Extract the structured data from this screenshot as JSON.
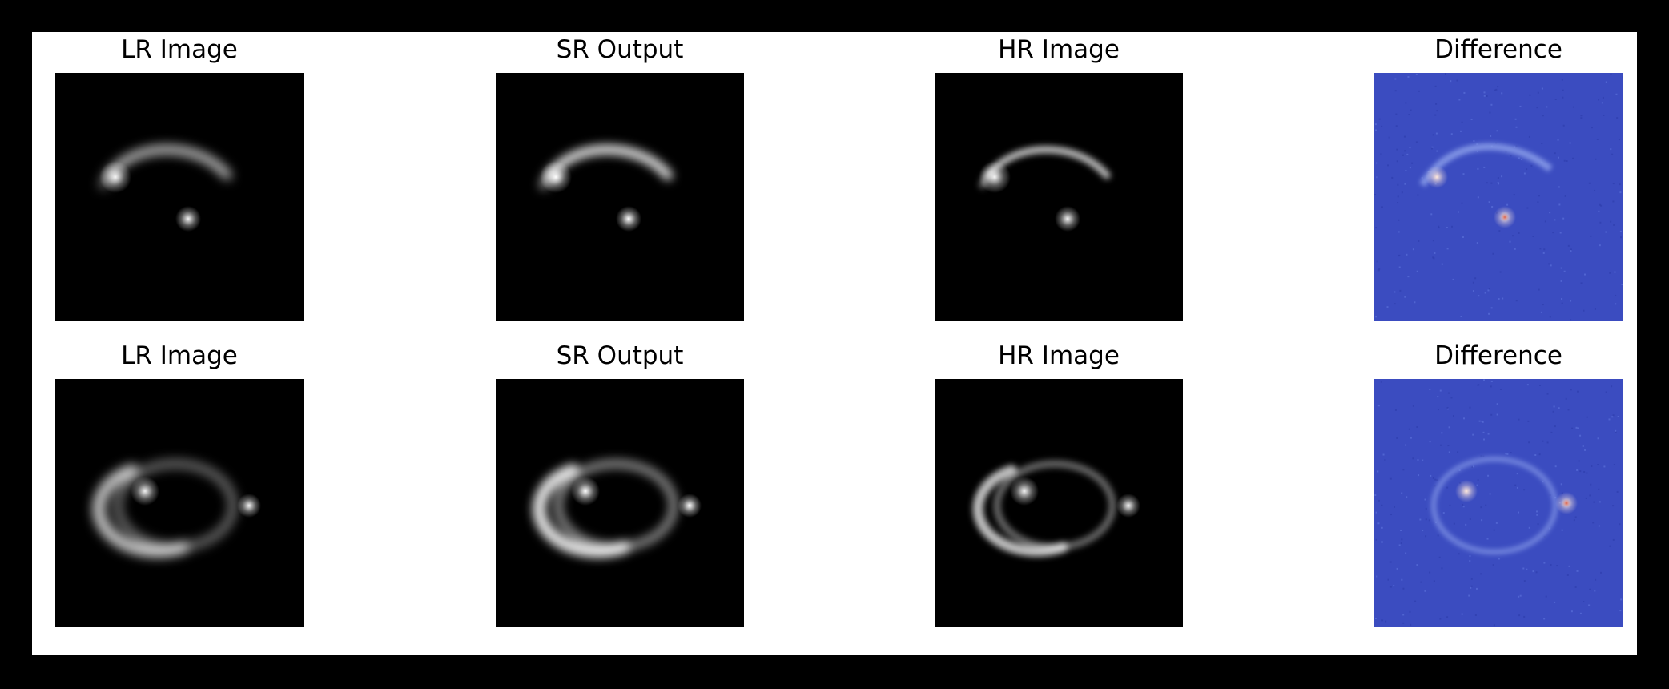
{
  "figure": {
    "rows": [
      {
        "panels": [
          {
            "title": "LR Image",
            "kind": "lr",
            "image": "lensed galaxy ring (low resolution)"
          },
          {
            "title": "SR Output",
            "kind": "sr",
            "image": "lensed galaxy ring (super-resolved)"
          },
          {
            "title": "HR Image",
            "kind": "hr",
            "image": "lensed galaxy ring (high resolution)"
          },
          {
            "title": "Difference",
            "kind": "diff",
            "image": "difference map (coolwarm colormap)"
          }
        ]
      },
      {
        "panels": [
          {
            "title": "LR Image",
            "kind": "lr",
            "image": "lensed galaxy ring (low resolution)"
          },
          {
            "title": "SR Output",
            "kind": "sr",
            "image": "lensed galaxy ring (super-resolved)"
          },
          {
            "title": "HR Image",
            "kind": "hr",
            "image": "lensed galaxy ring (high resolution)"
          },
          {
            "title": "Difference",
            "kind": "diff",
            "image": "difference map (coolwarm colormap)"
          }
        ]
      }
    ]
  },
  "colors": {
    "page_background": "#000000",
    "figure_background": "#ffffff",
    "image_background": "#000000",
    "diff_background": "#3b4cc0",
    "diff_hot": "#d6604d"
  }
}
